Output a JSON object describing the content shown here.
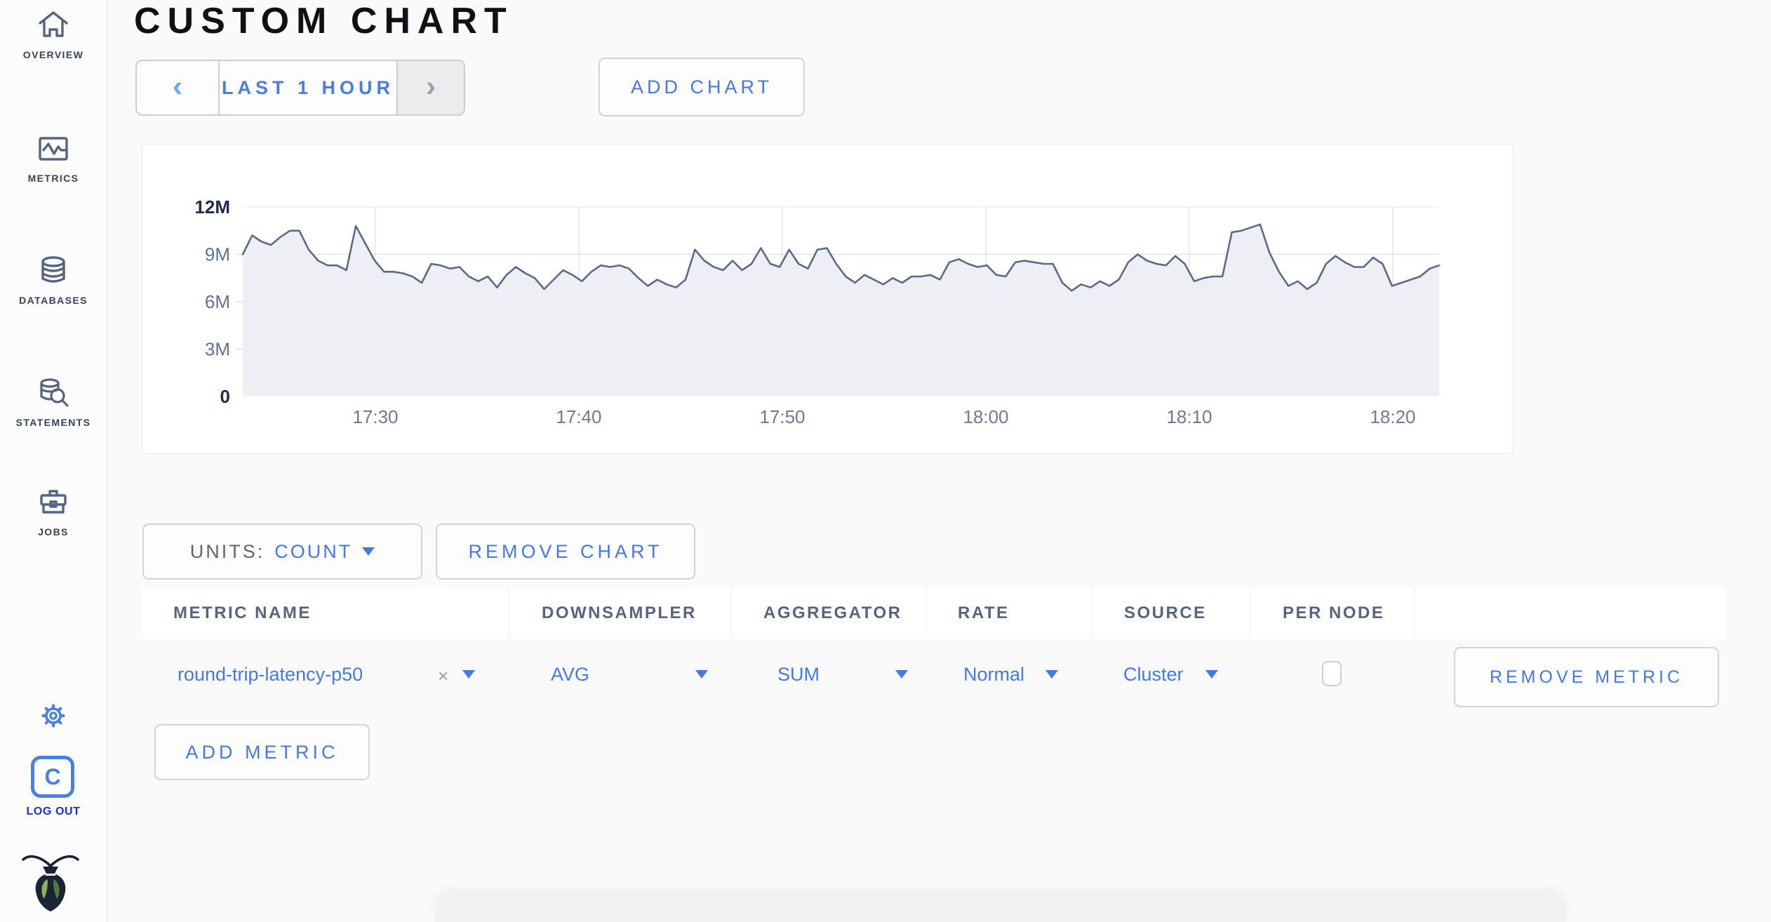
{
  "sidebar": {
    "items": [
      {
        "label": "OVERVIEW",
        "icon": "home-icon"
      },
      {
        "label": "METRICS",
        "icon": "metrics-icon"
      },
      {
        "label": "DATABASES",
        "icon": "database-icon"
      },
      {
        "label": "STATEMENTS",
        "icon": "statements-icon"
      },
      {
        "label": "JOBS",
        "icon": "jobs-icon"
      }
    ],
    "logout_label": "LOG OUT",
    "logo_letter": "C"
  },
  "header": {
    "title": "CUSTOM CHART"
  },
  "timerange": {
    "label": "LAST 1 HOUR",
    "prev_icon": "‹",
    "next_icon": "›"
  },
  "actions": {
    "add_chart": "ADD CHART",
    "remove_chart": "REMOVE CHART",
    "add_metric": "ADD METRIC",
    "remove_metric": "REMOVE METRIC"
  },
  "units": {
    "prefix": "UNITS:",
    "value": "COUNT"
  },
  "metrics_table": {
    "columns": [
      "METRIC NAME",
      "DOWNSAMPLER",
      "AGGREGATOR",
      "RATE",
      "SOURCE",
      "PER NODE"
    ],
    "rows": [
      {
        "metric_name": "round-trip-latency-p50",
        "remove_symbol": "×",
        "downsampler": "AVG",
        "aggregator": "SUM",
        "rate": "Normal",
        "source": "Cluster",
        "per_node_checked": false
      }
    ]
  },
  "chart_data": {
    "type": "area",
    "title": "",
    "unit": "count",
    "ylim_millions": [
      0,
      12
    ],
    "grid": true,
    "legend": "none",
    "x_ticks": [
      "17:30",
      "17:40",
      "17:50",
      "18:00",
      "18:10",
      "18:20"
    ],
    "y_ticks": [
      {
        "value": 12,
        "label": "12M",
        "emphasis": true
      },
      {
        "value": 9,
        "label": "9M",
        "emphasis": false
      },
      {
        "value": 6,
        "label": "6M",
        "emphasis": false
      },
      {
        "value": 3,
        "label": "3M",
        "emphasis": false
      },
      {
        "value": 0,
        "label": "0",
        "emphasis": true
      }
    ],
    "line_color": "#5b6a89",
    "fill_color": "#edeff5",
    "series": [
      {
        "name": "round-trip-latency-p50",
        "values_millions": [
          9.0,
          10.2,
          9.8,
          9.6,
          10.1,
          10.5,
          10.5,
          9.3,
          8.6,
          8.3,
          8.3,
          8.0,
          10.8,
          9.7,
          8.6,
          7.9,
          7.9,
          7.8,
          7.6,
          7.2,
          8.4,
          8.3,
          8.1,
          8.2,
          7.6,
          7.3,
          7.6,
          6.9,
          7.7,
          8.2,
          7.8,
          7.5,
          6.8,
          7.4,
          8.0,
          7.7,
          7.3,
          7.9,
          8.3,
          8.2,
          8.3,
          8.1,
          7.5,
          7.0,
          7.4,
          7.1,
          6.9,
          7.4,
          9.3,
          8.6,
          8.2,
          8.0,
          8.6,
          8.0,
          8.4,
          9.4,
          8.4,
          8.2,
          9.3,
          8.4,
          8.1,
          9.3,
          9.4,
          8.4,
          7.6,
          7.2,
          7.7,
          7.4,
          7.1,
          7.5,
          7.2,
          7.6,
          7.6,
          7.7,
          7.4,
          8.5,
          8.7,
          8.4,
          8.2,
          8.3,
          7.7,
          7.6,
          8.5,
          8.6,
          8.5,
          8.4,
          8.4,
          7.2,
          6.7,
          7.1,
          6.9,
          7.3,
          7.0,
          7.4,
          8.5,
          9.0,
          8.6,
          8.4,
          8.3,
          8.9,
          8.4,
          7.3,
          7.5,
          7.6,
          7.6,
          10.4,
          10.5,
          10.7,
          10.9,
          9.1,
          7.9,
          7.0,
          7.3,
          6.8,
          7.2,
          8.4,
          8.9,
          8.5,
          8.2,
          8.2,
          8.8,
          8.4,
          7.0,
          7.2,
          7.4,
          7.6,
          8.1,
          8.3
        ]
      }
    ]
  }
}
